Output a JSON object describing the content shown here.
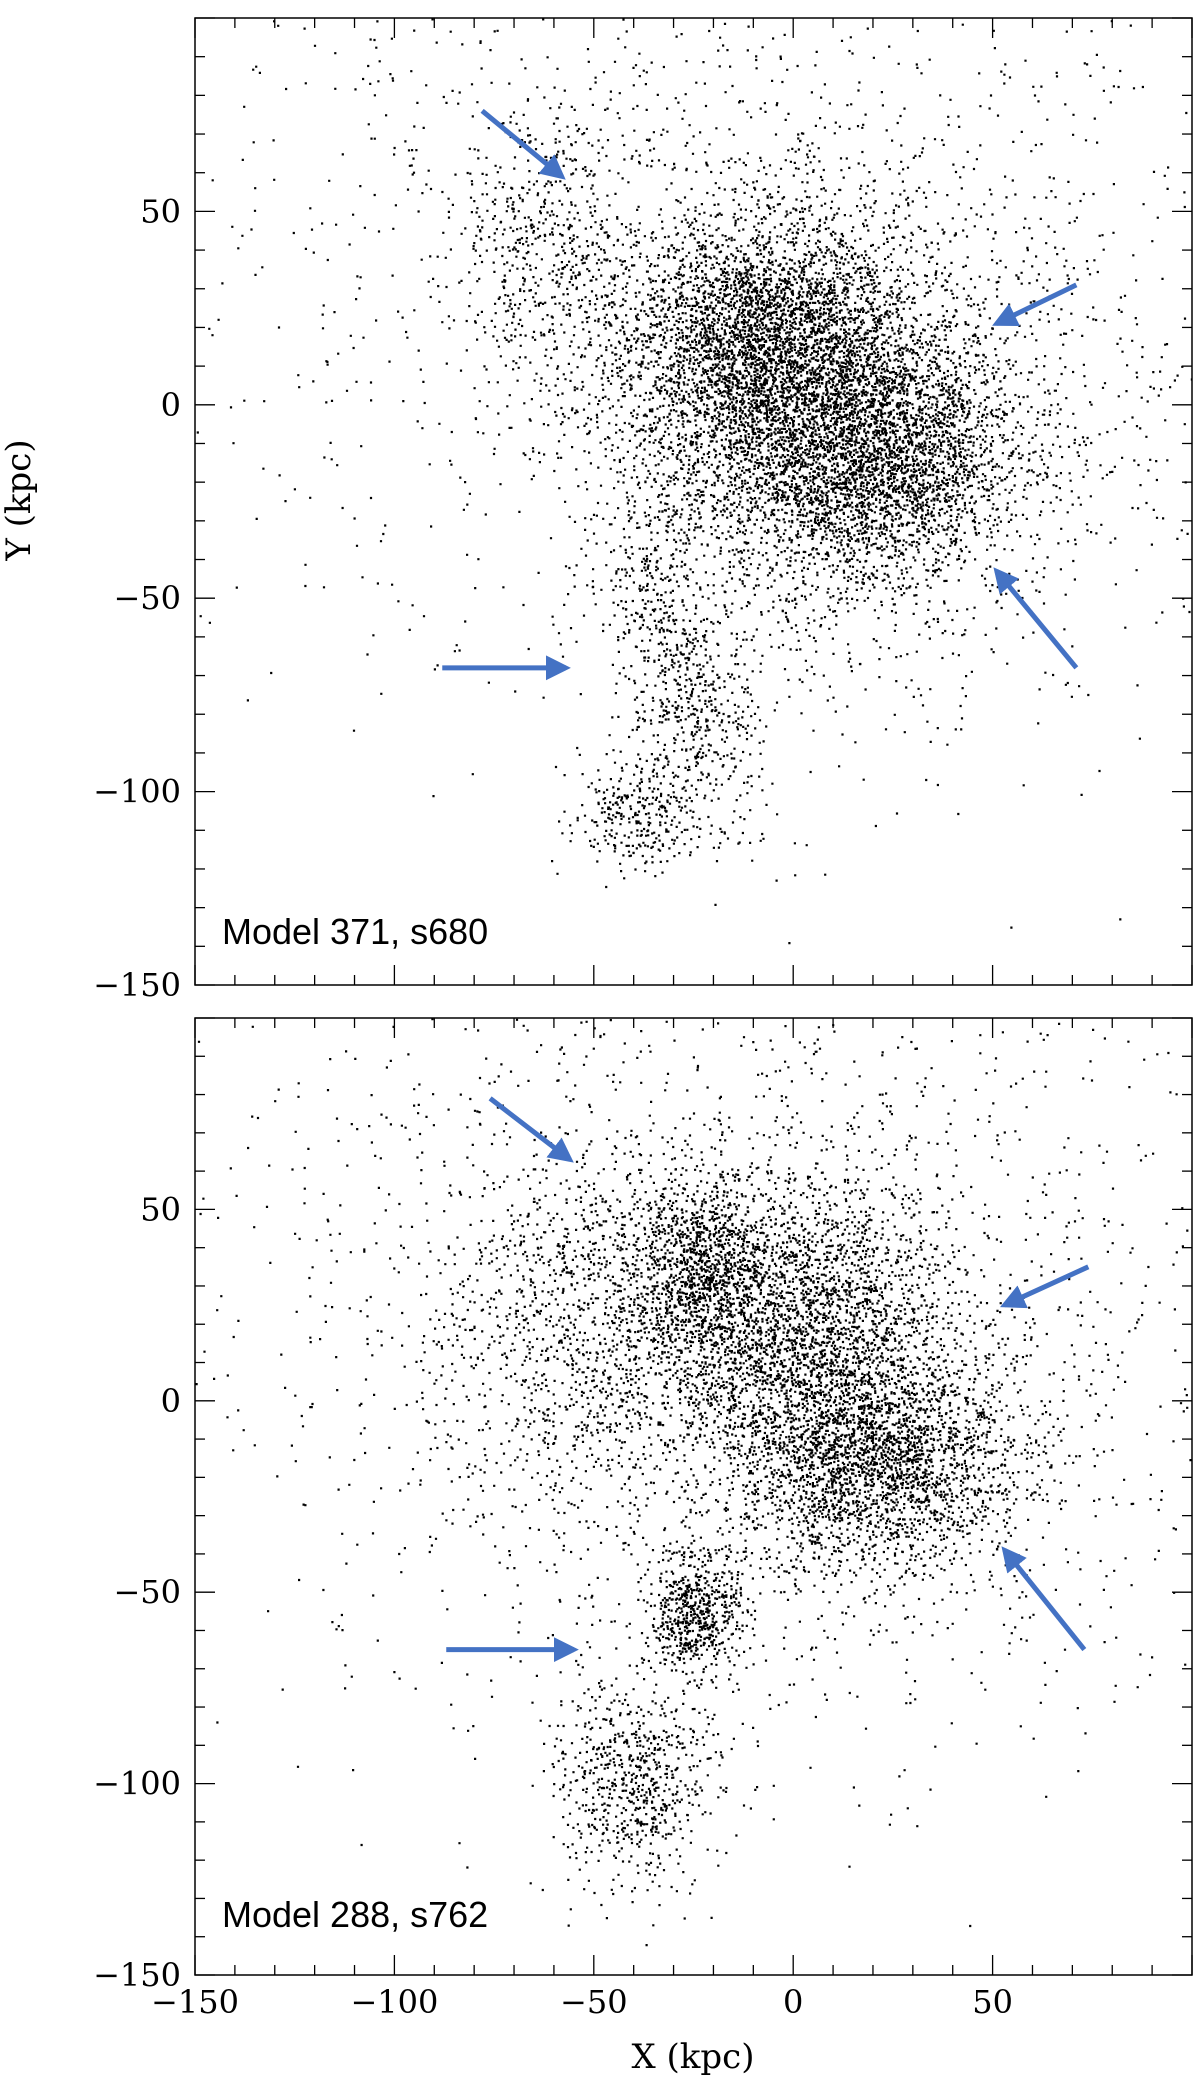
{
  "figure": {
    "xlabel": "X (kpc)",
    "ylabel": "Y (kpc)",
    "arrow_color": "#4472c4",
    "point_color": "#000000"
  },
  "chart_data": [
    {
      "type": "scatter",
      "label": "Model 371, s680",
      "xlabel": "",
      "ylabel": "Y (kpc)",
      "xlim": [
        -150,
        100
      ],
      "ylim": [
        -150,
        100
      ],
      "xticks": [
        -150,
        -100,
        -50,
        0,
        50
      ],
      "yticks": [
        -150,
        -100,
        -50,
        0,
        50
      ],
      "yticklabels": [
        "−150",
        "−100",
        "−50",
        "0",
        "50"
      ],
      "arrows": [
        {
          "from": [
            -78,
            76
          ],
          "to": [
            -58,
            59
          ]
        },
        {
          "from": [
            71,
            31
          ],
          "to": [
            51,
            21
          ]
        },
        {
          "from": [
            71,
            -68
          ],
          "to": [
            51,
            -43
          ]
        },
        {
          "from": [
            -88,
            -68
          ],
          "to": [
            -57,
            -68
          ]
        }
      ],
      "clusters": [
        {
          "center": [
            5,
            0
          ],
          "sigma": [
            24,
            22
          ],
          "n": 5200,
          "angle": -40
        },
        {
          "center": [
            -12,
            20
          ],
          "sigma": [
            16,
            14
          ],
          "n": 1600,
          "angle": 0
        },
        {
          "center": [
            25,
            -15
          ],
          "sigma": [
            15,
            13
          ],
          "n": 1300,
          "angle": 0
        },
        {
          "center": [
            -28,
            -70
          ],
          "sigma": [
            8,
            22
          ],
          "n": 700,
          "angle": 15
        },
        {
          "center": [
            -40,
            -105
          ],
          "sigma": [
            8,
            7
          ],
          "n": 300,
          "angle": 0
        },
        {
          "center": [
            -62,
            40
          ],
          "sigma": [
            12,
            18
          ],
          "n": 500,
          "angle": 0
        },
        {
          "center": [
            10,
            0
          ],
          "sigma": [
            45,
            42
          ],
          "n": 1400,
          "angle": 0
        },
        {
          "center": [
            -20,
            40
          ],
          "sigma": [
            70,
            55
          ],
          "n": 1300,
          "angle": 0
        }
      ]
    },
    {
      "type": "scatter",
      "label": "Model 288, s762",
      "xlabel": "X (kpc)",
      "ylabel": "",
      "xlim": [
        -150,
        100
      ],
      "ylim": [
        -150,
        100
      ],
      "xticks": [
        -150,
        -100,
        -50,
        0,
        50
      ],
      "xticklabels": [
        "−150",
        "−100",
        "−50",
        "0",
        "50"
      ],
      "yticks": [
        -150,
        -100,
        -50,
        0,
        50
      ],
      "yticklabels": [
        "−150",
        "−100",
        "−50",
        "0",
        "50"
      ],
      "arrows": [
        {
          "from": [
            -76,
            79
          ],
          "to": [
            -56,
            63
          ]
        },
        {
          "from": [
            74,
            35
          ],
          "to": [
            53,
            25
          ]
        },
        {
          "from": [
            73,
            -65
          ],
          "to": [
            53,
            -39
          ]
        },
        {
          "from": [
            -87,
            -65
          ],
          "to": [
            -55,
            -65
          ]
        }
      ],
      "clusters": [
        {
          "center": [
            0,
            20
          ],
          "sigma": [
            20,
            18
          ],
          "n": 2600,
          "angle": 0
        },
        {
          "center": [
            20,
            -15
          ],
          "sigma": [
            18,
            14
          ],
          "n": 2400,
          "angle": 0
        },
        {
          "center": [
            -25,
            35
          ],
          "sigma": [
            10,
            12
          ],
          "n": 900,
          "angle": 0
        },
        {
          "center": [
            -25,
            -55
          ],
          "sigma": [
            6,
            8
          ],
          "n": 600,
          "angle": 0
        },
        {
          "center": [
            -40,
            -100
          ],
          "sigma": [
            10,
            14
          ],
          "n": 700,
          "angle": 0
        },
        {
          "center": [
            -55,
            20
          ],
          "sigma": [
            18,
            22
          ],
          "n": 800,
          "angle": 0
        },
        {
          "center": [
            0,
            0
          ],
          "sigma": [
            45,
            42
          ],
          "n": 1600,
          "angle": 0
        },
        {
          "center": [
            -30,
            40
          ],
          "sigma": [
            70,
            55
          ],
          "n": 1300,
          "angle": 0
        }
      ]
    }
  ]
}
